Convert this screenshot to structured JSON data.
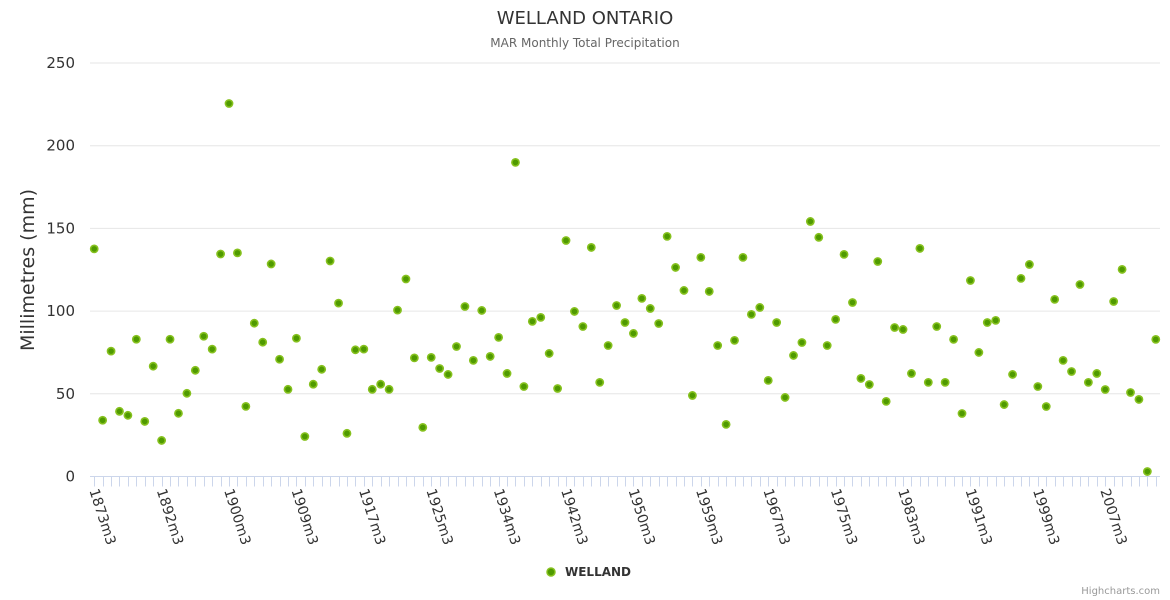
{
  "chart_data": {
    "type": "scatter",
    "title": "WELLAND ONTARIO",
    "subtitle": "MAR Monthly Total Precipitation",
    "xlabel": "",
    "ylabel": "Millimetres (mm)",
    "ylim": [
      0,
      250
    ],
    "y_ticks": [
      0,
      50,
      100,
      150,
      200,
      250
    ],
    "grid": true,
    "x_tick_interval": 8,
    "x_tick_labels": [
      "1873m3",
      "1892m3",
      "1900m3",
      "1909m3",
      "1917m3",
      "1925m3",
      "1934m3",
      "1942m3",
      "1950m3",
      "1959m3",
      "1967m3",
      "1975m3",
      "1983m3",
      "1991m3",
      "1999m3",
      "2007m3"
    ],
    "legend_position": "bottom-center",
    "series": [
      {
        "name": "WELLAND",
        "color": "#4f9a00",
        "values": [
          137.6,
          34,
          75.8,
          39.4,
          37,
          83,
          33.3,
          66.7,
          21.8,
          83,
          38.2,
          50.3,
          64.2,
          84.8,
          77,
          134.5,
          225.5,
          135.2,
          42.4,
          92.7,
          81.2,
          128.5,
          70.9,
          52.7,
          83.6,
          24.2,
          55.8,
          64.8,
          130.3,
          104.8,
          26.1,
          76.6,
          77,
          52.7,
          55.8,
          52.7,
          100.6,
          119.4,
          71.7,
          29.7,
          72,
          65.3,
          61.7,
          78.6,
          102.8,
          70.2,
          100.4,
          72.6,
          84.1,
          62.3,
          189.9,
          54.4,
          93.8,
          96.2,
          74.4,
          53.2,
          142.7,
          99.8,
          90.7,
          138.5,
          56.9,
          79.2,
          103.4,
          93.1,
          86.5,
          107.7,
          101.6,
          92.5,
          145.2,
          126.4,
          112.5,
          49,
          132.5,
          111.9,
          79.2,
          31.5,
          82.3,
          132.5,
          98,
          102.2,
          58.1,
          93.1,
          47.8,
          73.2,
          81,
          154.2,
          144.6,
          79.2,
          95,
          134.3,
          105.2,
          59.3,
          55.6,
          130,
          45.4,
          90.1,
          88.9,
          62.3,
          137.9,
          56.9,
          90.7,
          56.9,
          82.9,
          38.1,
          118.5,
          75,
          93.1,
          94.4,
          43.5,
          61.7,
          119.8,
          128.2,
          54.4,
          42.3,
          107.1,
          70.2,
          63.5,
          116.1,
          56.9,
          62.3,
          52.6,
          105.8,
          125.2,
          50.8,
          46.6,
          3,
          82.9
        ]
      }
    ]
  },
  "credits": "Highcharts.com"
}
